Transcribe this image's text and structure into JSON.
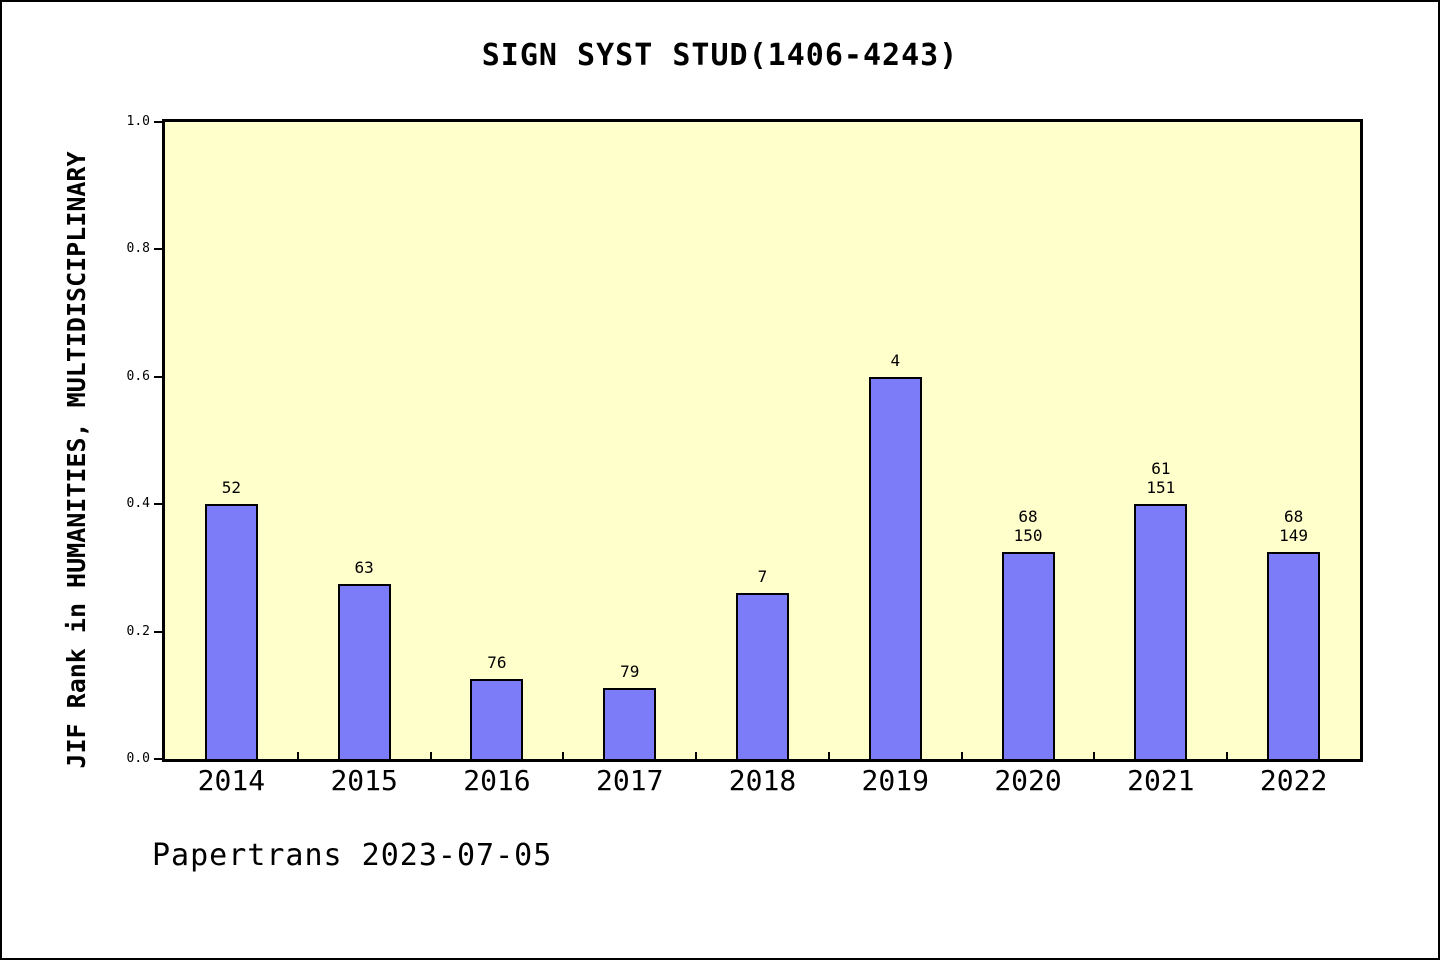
{
  "chart_data": {
    "type": "bar",
    "title": "SIGN SYST STUD(1406-4243)",
    "ylabel": "JIF Rank in HUMANITIES, MULTIDISCIPLINARY",
    "xlabel": "",
    "categories": [
      "2014",
      "2015",
      "2016",
      "2017",
      "2018",
      "2019",
      "2020",
      "2021",
      "2022"
    ],
    "values": [
      0.4,
      0.275,
      0.125,
      0.112,
      0.26,
      0.6,
      0.325,
      0.4,
      0.325
    ],
    "bar_labels": [
      [
        "52"
      ],
      [
        "63"
      ],
      [
        "76"
      ],
      [
        "79"
      ],
      [
        "7"
      ],
      [
        "4"
      ],
      [
        "68",
        "150"
      ],
      [
        "61",
        "151"
      ],
      [
        "68",
        "149"
      ]
    ],
    "ylim": [
      0.0,
      1.0
    ],
    "yticks": [
      "0.0",
      "0.2",
      "0.4",
      "0.6",
      "0.8",
      "1.0"
    ],
    "ytick_values": [
      0.0,
      0.2,
      0.4,
      0.6,
      0.8,
      1.0
    ],
    "grid": false,
    "legend_position": "none",
    "colors": {
      "bar_fill": "#7C7CF8",
      "bar_border": "#000000",
      "plot_background": "#FFFFCC",
      "page_background": "#FFFFFF",
      "axis": "#000000",
      "text": "#000000"
    }
  },
  "footer": {
    "text": "Papertrans 2023-07-05"
  }
}
